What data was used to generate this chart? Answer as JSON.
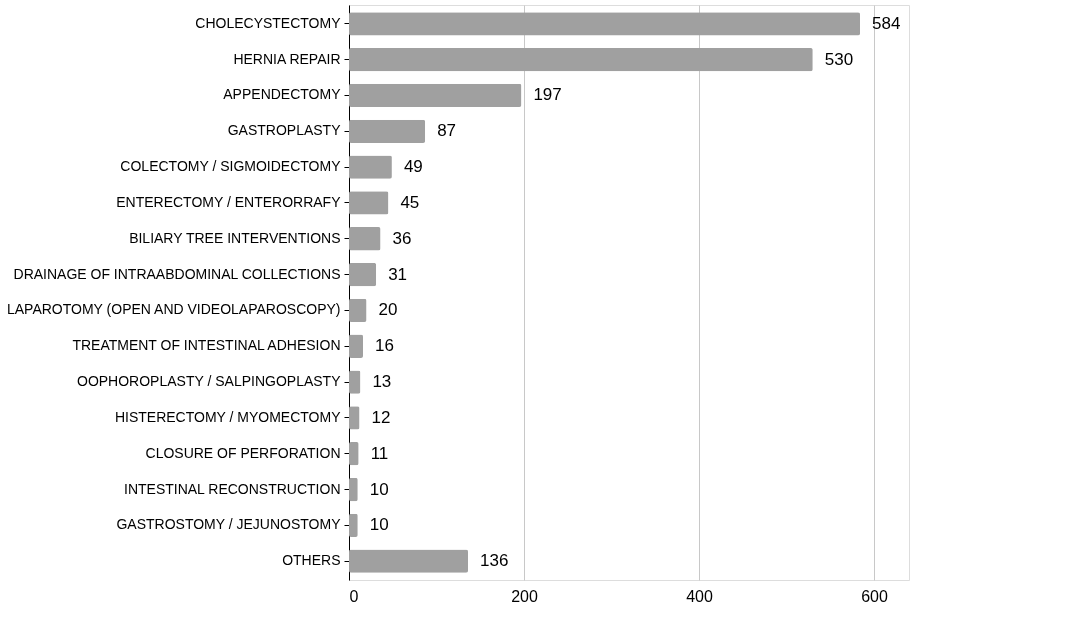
{
  "chart_data": {
    "type": "bar",
    "orientation": "horizontal",
    "categories": [
      "CHOLECYSTECTOMY",
      "HERNIA REPAIR",
      "APPENDECTOMY",
      "GASTROPLASTY",
      "COLECTOMY / SIGMOIDECTOMY",
      "ENTERECTOMY / ENTERORRAFY",
      "BILIARY TREE INTERVENTIONS",
      "DRAINAGE OF INTRAABDOMINAL COLLECTIONS",
      "LAPAROTOMY (OPEN AND VIDEOLAPAROSCOPY)",
      "TREATMENT OF INTESTINAL ADHESION",
      "OOPHOROPLASTY / SALPINGOPLASTY",
      "HISTERECTOMY / MYOMECTOMY",
      "CLOSURE OF PERFORATION",
      "INTESTINAL RECONSTRUCTION",
      "GASTROSTOMY / JEJUNOSTOMY",
      "OTHERS"
    ],
    "values": [
      584,
      530,
      197,
      87,
      49,
      45,
      36,
      31,
      20,
      16,
      13,
      12,
      11,
      10,
      10,
      136
    ],
    "color": "#a0a0a0",
    "xlim": [
      0,
      640
    ],
    "xticks": [
      0,
      200,
      400,
      600
    ],
    "grid": "x",
    "data_labels": true
  }
}
